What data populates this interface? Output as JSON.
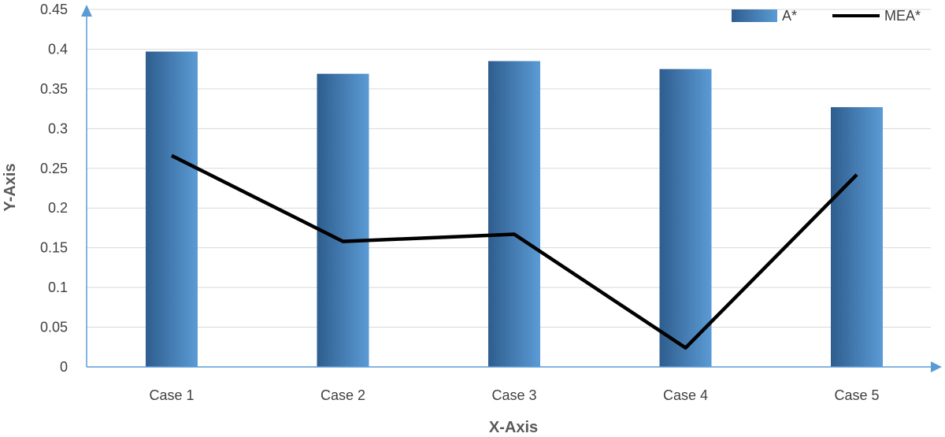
{
  "chart_data": {
    "type": "bar",
    "categories": [
      "Case 1",
      "Case 2",
      "Case 3",
      "Case 4",
      "Case 5"
    ],
    "series": [
      {
        "name": "A*",
        "type": "bar",
        "values": [
          0.397,
          0.369,
          0.385,
          0.375,
          0.327
        ],
        "color": "#3f7fc0"
      },
      {
        "name": "MEA*",
        "type": "line",
        "values": [
          0.266,
          0.158,
          0.167,
          0.024,
          0.242
        ],
        "color": "#000000"
      }
    ],
    "xlabel": "X-Axis",
    "ylabel": "Y-Axis",
    "ylim": [
      0,
      0.45
    ],
    "yticks": [
      "0",
      "0.05",
      "0.1",
      "0.15",
      "0.2",
      "0.25",
      "0.3",
      "0.35",
      "0.4",
      "0.45"
    ],
    "grid": true,
    "legend_position": "top-right",
    "axis_color": "#5b9bd5",
    "grid_color": "#d9d9d9"
  }
}
